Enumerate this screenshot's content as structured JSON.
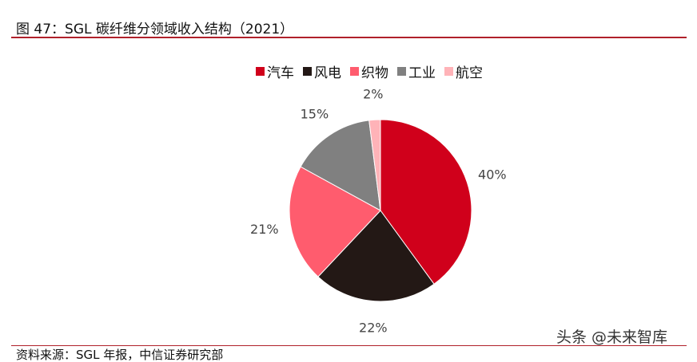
{
  "figure": {
    "title": "图 47：SGL 碳纤维分领域收入结构（2021）",
    "source": "资料来源：SGL 年报，中信证券研究部",
    "watermark": "头条 @未来智库"
  },
  "chart_data": {
    "type": "pie",
    "categories": [
      "汽车",
      "风电",
      "织物",
      "工业",
      "航空"
    ],
    "values": [
      40,
      22,
      21,
      15,
      2
    ],
    "labels": [
      "40%",
      "22%",
      "21%",
      "15%",
      "2%"
    ],
    "colors": [
      "#d0001b",
      "#231815",
      "#ff5c6e",
      "#808080",
      "#ffb3b8"
    ],
    "legend_placement": "top",
    "start": "12 o'clock",
    "direction": "clockwise"
  }
}
